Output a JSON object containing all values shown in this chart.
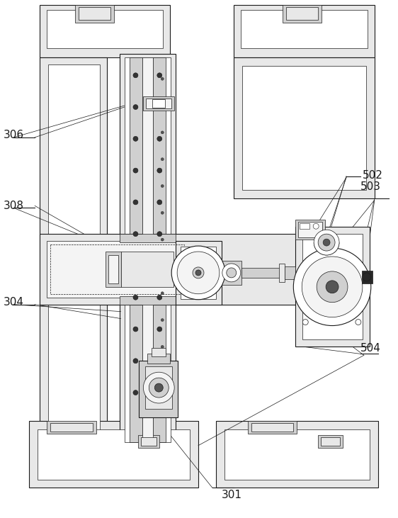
{
  "bg_color": "#ffffff",
  "line_color": "#1a1a1a",
  "fig_width": 5.62,
  "fig_height": 7.31,
  "dpi": 100,
  "label_fontsize": 11,
  "lw_thin": 0.5,
  "lw_med": 0.8,
  "lw_thick": 1.2,
  "gray_light": "#e8e8e8",
  "gray_med": "#d0d0d0",
  "gray_dark": "#a0a0a0",
  "gray_inner": "#f4f4f4",
  "gray_fill": "#c8c8c8"
}
